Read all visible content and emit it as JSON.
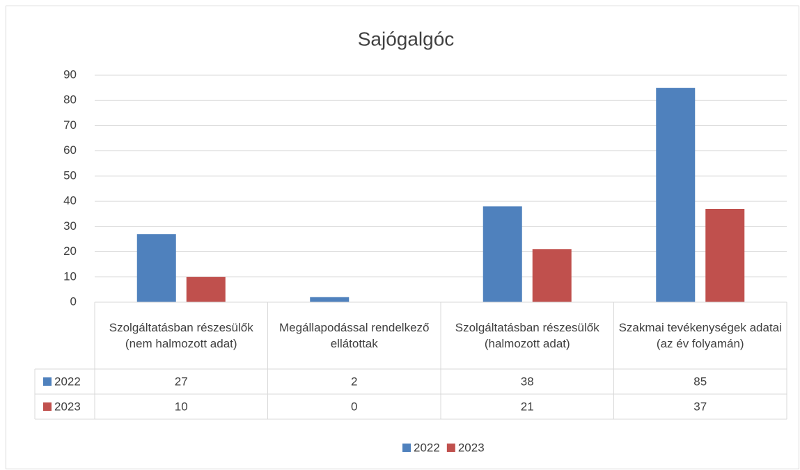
{
  "chart_data": {
    "type": "bar",
    "title": "Sajógalgóc",
    "categories": [
      "Szolgáltatásban részesülők (nem halmozott adat)",
      "Megállapodással rendelkező ellátottak",
      "Szolgáltatásban részesülők (halmozott adat)",
      "Szakmai tevékenységek adatai (az év folyamán)"
    ],
    "series": [
      {
        "name": "2022",
        "color": "#4f81bd",
        "values": [
          27,
          2,
          38,
          85
        ]
      },
      {
        "name": "2023",
        "color": "#c0504d",
        "values": [
          10,
          0,
          21,
          37
        ]
      }
    ],
    "ylim": [
      0,
      90
    ],
    "yticks": [
      0,
      10,
      20,
      30,
      40,
      50,
      60,
      70,
      80,
      90
    ],
    "grid": true,
    "legend": "bottom",
    "data_table": true
  }
}
